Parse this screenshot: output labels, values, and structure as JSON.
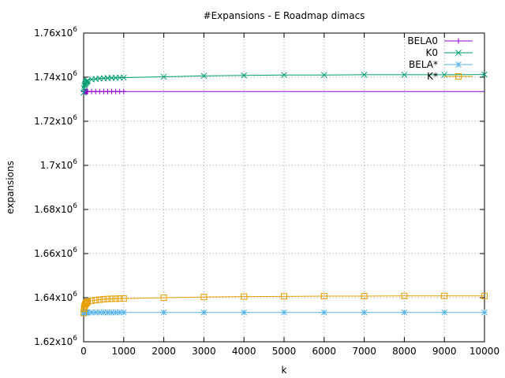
{
  "chart_data": {
    "type": "line",
    "title": "#Expansions - E Roadmap dimacs",
    "xlabel": "k",
    "ylabel": "expansions",
    "xlim": [
      0,
      10000
    ],
    "ylim": [
      1620000,
      1760000
    ],
    "x_ticks": [
      0,
      1000,
      2000,
      3000,
      4000,
      5000,
      6000,
      7000,
      8000,
      9000,
      10000
    ],
    "y_ticks": [
      {
        "value": 1620000,
        "mantissa": "1.62",
        "exp": "6"
      },
      {
        "value": 1640000,
        "mantissa": "1.64",
        "exp": "6"
      },
      {
        "value": 1660000,
        "mantissa": "1.66",
        "exp": "6"
      },
      {
        "value": 1680000,
        "mantissa": "1.68",
        "exp": "6"
      },
      {
        "value": 1700000,
        "mantissa": "1.7",
        "exp": "6"
      },
      {
        "value": 1720000,
        "mantissa": "1.72",
        "exp": "6"
      },
      {
        "value": 1740000,
        "mantissa": "1.74",
        "exp": "6"
      },
      {
        "value": 1760000,
        "mantissa": "1.76",
        "exp": "6"
      }
    ],
    "grid": true,
    "legend_position": "top-right",
    "series": [
      {
        "name": "BELA0",
        "color": "#9400d3",
        "marker": "plus",
        "points": [
          [
            1,
            1733500
          ],
          [
            10,
            1733500
          ],
          [
            20,
            1733500
          ],
          [
            30,
            1733500
          ],
          [
            40,
            1733500
          ],
          [
            50,
            1733500
          ],
          [
            60,
            1733500
          ],
          [
            70,
            1733500
          ],
          [
            80,
            1733500
          ],
          [
            90,
            1733500
          ],
          [
            100,
            1733500
          ],
          [
            200,
            1733500
          ],
          [
            300,
            1733500
          ],
          [
            400,
            1733500
          ],
          [
            500,
            1733500
          ],
          [
            600,
            1733500
          ],
          [
            700,
            1733500
          ],
          [
            800,
            1733500
          ],
          [
            900,
            1733500
          ],
          [
            1000,
            1733500
          ]
        ],
        "line_to_x": 10000
      },
      {
        "name": "K0",
        "color": "#009e73",
        "marker": "cross",
        "points": [
          [
            1,
            1733000
          ],
          [
            10,
            1735000
          ],
          [
            20,
            1736000
          ],
          [
            30,
            1736500
          ],
          [
            40,
            1737000
          ],
          [
            50,
            1737500
          ],
          [
            60,
            1737500
          ],
          [
            70,
            1738000
          ],
          [
            80,
            1738000
          ],
          [
            90,
            1738200
          ],
          [
            100,
            1738500
          ],
          [
            200,
            1739000
          ],
          [
            300,
            1739200
          ],
          [
            400,
            1739400
          ],
          [
            500,
            1739500
          ],
          [
            600,
            1739600
          ],
          [
            700,
            1739700
          ],
          [
            800,
            1739700
          ],
          [
            900,
            1739800
          ],
          [
            1000,
            1739800
          ],
          [
            2000,
            1740200
          ],
          [
            3000,
            1740600
          ],
          [
            4000,
            1740800
          ],
          [
            5000,
            1741000
          ],
          [
            6000,
            1741000
          ],
          [
            7000,
            1741100
          ],
          [
            8000,
            1741100
          ],
          [
            9000,
            1741100
          ],
          [
            10000,
            1741200
          ]
        ]
      },
      {
        "name": "BELA*",
        "color": "#56b4e9",
        "marker": "star",
        "points": [
          [
            1,
            1633300
          ],
          [
            10,
            1633300
          ],
          [
            20,
            1633300
          ],
          [
            30,
            1633300
          ],
          [
            40,
            1633300
          ],
          [
            50,
            1633300
          ],
          [
            60,
            1633300
          ],
          [
            70,
            1633300
          ],
          [
            80,
            1633300
          ],
          [
            90,
            1633300
          ],
          [
            100,
            1633300
          ],
          [
            200,
            1633300
          ],
          [
            300,
            1633300
          ],
          [
            400,
            1633300
          ],
          [
            500,
            1633300
          ],
          [
            600,
            1633300
          ],
          [
            700,
            1633300
          ],
          [
            800,
            1633300
          ],
          [
            900,
            1633300
          ],
          [
            1000,
            1633300
          ],
          [
            2000,
            1633300
          ],
          [
            3000,
            1633300
          ],
          [
            4000,
            1633300
          ],
          [
            5000,
            1633300
          ],
          [
            6000,
            1633300
          ],
          [
            7000,
            1633300
          ],
          [
            8000,
            1633300
          ],
          [
            9000,
            1633300
          ],
          [
            10000,
            1633300
          ]
        ]
      },
      {
        "name": "K*",
        "color": "#e69f00",
        "marker": "square",
        "points": [
          [
            1,
            1633000
          ],
          [
            10,
            1635000
          ],
          [
            20,
            1636000
          ],
          [
            30,
            1636500
          ],
          [
            40,
            1637000
          ],
          [
            50,
            1637200
          ],
          [
            60,
            1637400
          ],
          [
            70,
            1637600
          ],
          [
            80,
            1637800
          ],
          [
            90,
            1638000
          ],
          [
            100,
            1638200
          ],
          [
            200,
            1638600
          ],
          [
            300,
            1638900
          ],
          [
            400,
            1639100
          ],
          [
            500,
            1639300
          ],
          [
            600,
            1639400
          ],
          [
            700,
            1639500
          ],
          [
            800,
            1639500
          ],
          [
            900,
            1639600
          ],
          [
            1000,
            1639600
          ],
          [
            2000,
            1640000
          ],
          [
            3000,
            1640300
          ],
          [
            4000,
            1640500
          ],
          [
            5000,
            1640600
          ],
          [
            6000,
            1640700
          ],
          [
            7000,
            1640700
          ],
          [
            8000,
            1640800
          ],
          [
            9000,
            1640800
          ],
          [
            10000,
            1640800
          ]
        ]
      }
    ]
  }
}
